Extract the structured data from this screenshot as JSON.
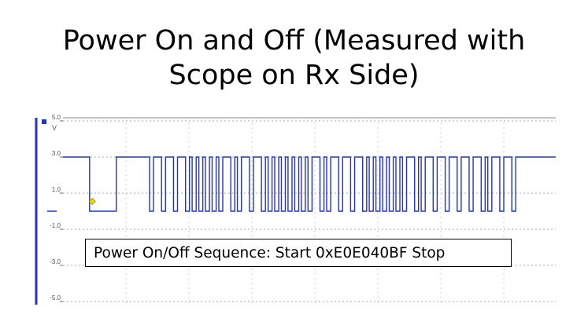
{
  "slide": {
    "title_line1": "Power On and Off (Measured with",
    "title_line2": "Scope on Rx Side)"
  },
  "chart_data": {
    "type": "line",
    "title": "Power On and Off (Measured with Scope on Rx Side)",
    "ylabel_unit": "V",
    "ylim": [
      -5.0,
      5.0
    ],
    "y_ticks": [
      {
        "value": 5.0,
        "label": "5.0"
      },
      {
        "value": 3.0,
        "label": "3.0"
      },
      {
        "value": 1.0,
        "label": "1.0"
      },
      {
        "value": -1.0,
        "label": "-1.0"
      },
      {
        "value": -3.0,
        "label": "-3.0"
      },
      {
        "value": -5.0,
        "label": "-5.0"
      }
    ],
    "grid": true,
    "series": [
      {
        "color": "#2233cc",
        "high_level": 3.0,
        "low_level": 0.0,
        "waveform": [
          [
            "H",
            10
          ],
          [
            "L",
            10
          ],
          [
            "H",
            12.5
          ],
          [
            "L",
            1.5
          ],
          [
            "H",
            3
          ],
          [
            "L",
            1.5
          ],
          [
            "H",
            3
          ],
          [
            "L",
            1.5
          ],
          [
            "H",
            3
          ],
          [
            "L",
            1.5
          ],
          [
            "H",
            1
          ],
          [
            "L",
            1.5
          ],
          [
            "H",
            1
          ],
          [
            "L",
            1.5
          ],
          [
            "H",
            1
          ],
          [
            "L",
            1.5
          ],
          [
            "H",
            1
          ],
          [
            "L",
            1.5
          ],
          [
            "H",
            1
          ],
          [
            "L",
            1.5
          ],
          [
            "H",
            3
          ],
          [
            "L",
            1.5
          ],
          [
            "H",
            1
          ],
          [
            "L",
            1.5
          ],
          [
            "H",
            3
          ],
          [
            "L",
            1.5
          ],
          [
            "H",
            3
          ],
          [
            "L",
            1.5
          ],
          [
            "H",
            1
          ],
          [
            "L",
            1.5
          ],
          [
            "H",
            1
          ],
          [
            "L",
            1.5
          ],
          [
            "H",
            1
          ],
          [
            "L",
            1.5
          ],
          [
            "H",
            1
          ],
          [
            "L",
            1.5
          ],
          [
            "H",
            1
          ],
          [
            "L",
            1.5
          ],
          [
            "H",
            1
          ],
          [
            "L",
            1.5
          ],
          [
            "H",
            1
          ],
          [
            "L",
            1.5
          ],
          [
            "H",
            3
          ],
          [
            "L",
            1.5
          ],
          [
            "H",
            1
          ],
          [
            "L",
            1.5
          ],
          [
            "H",
            3
          ],
          [
            "L",
            1.5
          ],
          [
            "H",
            3
          ],
          [
            "L",
            1.5
          ],
          [
            "H",
            3
          ],
          [
            "L",
            1.5
          ],
          [
            "H",
            1
          ],
          [
            "L",
            1.5
          ],
          [
            "H",
            1
          ],
          [
            "L",
            1.5
          ],
          [
            "H",
            1
          ],
          [
            "L",
            1.5
          ],
          [
            "H",
            1
          ],
          [
            "L",
            1.5
          ],
          [
            "H",
            1
          ],
          [
            "L",
            1.5
          ],
          [
            "H",
            1
          ],
          [
            "L",
            1.5
          ],
          [
            "H",
            3
          ],
          [
            "L",
            1.5
          ],
          [
            "H",
            1
          ],
          [
            "L",
            1.5
          ],
          [
            "H",
            3
          ],
          [
            "L",
            1.5
          ],
          [
            "H",
            3
          ],
          [
            "L",
            1.5
          ],
          [
            "H",
            3
          ],
          [
            "L",
            1.5
          ],
          [
            "H",
            3
          ],
          [
            "L",
            1.5
          ],
          [
            "H",
            3
          ],
          [
            "L",
            1.5
          ],
          [
            "H",
            1
          ],
          [
            "L",
            1.5
          ],
          [
            "H",
            3
          ],
          [
            "L",
            1.5
          ],
          [
            "H",
            3
          ],
          [
            "L",
            1.5
          ],
          [
            "H",
            15
          ]
        ]
      }
    ],
    "annotation": "Power On/Off Sequence: Start 0xE0E040BF  Stop"
  }
}
